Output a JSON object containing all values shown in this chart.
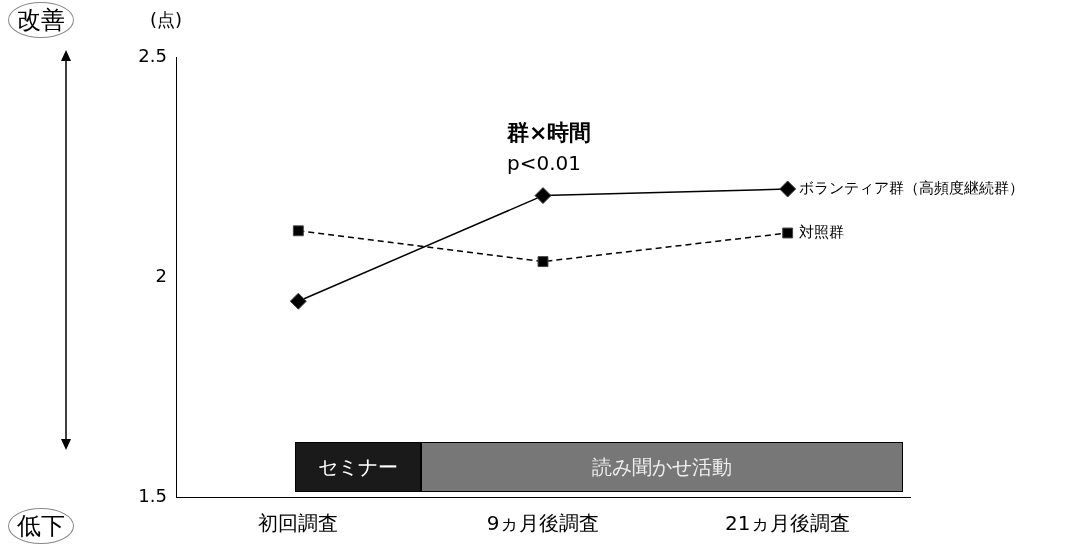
{
  "chart_data": {
    "type": "line",
    "ylabel": "(点)",
    "categories": [
      "初回調査",
      "9ヵ月後調査",
      "21ヵ月後調査"
    ],
    "series": [
      {
        "name": "ボランティア群（高頻度継続群）",
        "color": "#000000",
        "values": [
          1.945,
          2.185,
          2.2
        ],
        "marker": "diamond",
        "line_style": "solid"
      },
      {
        "name": "対照群",
        "color": "#000000",
        "values": [
          2.105,
          2.035,
          2.1
        ],
        "marker": "square",
        "line_style": "dashed"
      }
    ],
    "ylim": [
      1.5,
      2.5
    ],
    "yticks": [
      1.5,
      2,
      2.5
    ],
    "grid": false,
    "legend": false,
    "annotations": [
      "群×時間",
      "p<0.01",
      "改善",
      "低下",
      "セミナー",
      "読み聞かせ活動"
    ]
  }
}
